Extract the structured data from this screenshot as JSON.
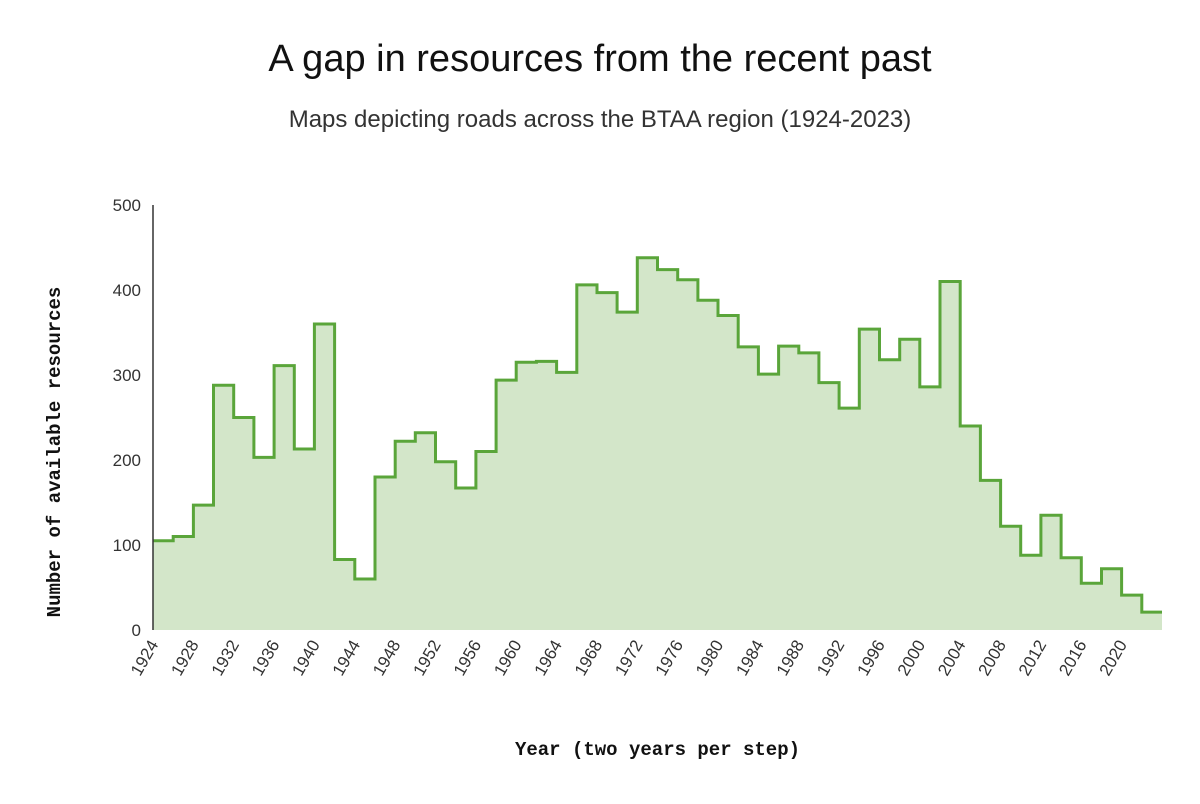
{
  "chart_data": {
    "type": "area",
    "step": "post",
    "title": "A gap in resources from the recent past",
    "subtitle": "Maps depicting roads across the BTAA region (1924-2023)",
    "xlabel": "Year (two years per step)",
    "ylabel": "Number of available resources",
    "xlim": [
      1924,
      2024
    ],
    "ylim": [
      0,
      500
    ],
    "x_ticks": [
      1924,
      1928,
      1932,
      1936,
      1940,
      1944,
      1948,
      1952,
      1956,
      1960,
      1964,
      1968,
      1972,
      1976,
      1980,
      1984,
      1988,
      1992,
      1996,
      2000,
      2004,
      2008,
      2012,
      2016,
      2020
    ],
    "y_ticks": [
      0,
      100,
      200,
      300,
      400,
      500
    ],
    "x": [
      1924,
      1926,
      1928,
      1930,
      1932,
      1934,
      1936,
      1938,
      1940,
      1942,
      1944,
      1946,
      1948,
      1950,
      1952,
      1954,
      1956,
      1958,
      1960,
      1962,
      1964,
      1966,
      1968,
      1970,
      1972,
      1974,
      1976,
      1978,
      1980,
      1982,
      1984,
      1986,
      1988,
      1990,
      1992,
      1994,
      1996,
      1998,
      2000,
      2002,
      2004,
      2006,
      2008,
      2010,
      2012,
      2014,
      2016,
      2018,
      2020,
      2022
    ],
    "values": [
      105,
      110,
      147,
      288,
      250,
      203,
      311,
      213,
      360,
      83,
      60,
      180,
      222,
      232,
      198,
      167,
      210,
      294,
      315,
      316,
      303,
      406,
      397,
      374,
      438,
      424,
      412,
      388,
      370,
      333,
      301,
      334,
      326,
      291,
      261,
      354,
      318,
      342,
      286,
      410,
      240,
      176,
      122,
      88,
      135,
      85,
      55,
      72,
      41,
      21
    ],
    "grid": false,
    "colors": {
      "line": "#5aa53a",
      "fill": "#d3e6c9",
      "axis": "#333333"
    }
  }
}
